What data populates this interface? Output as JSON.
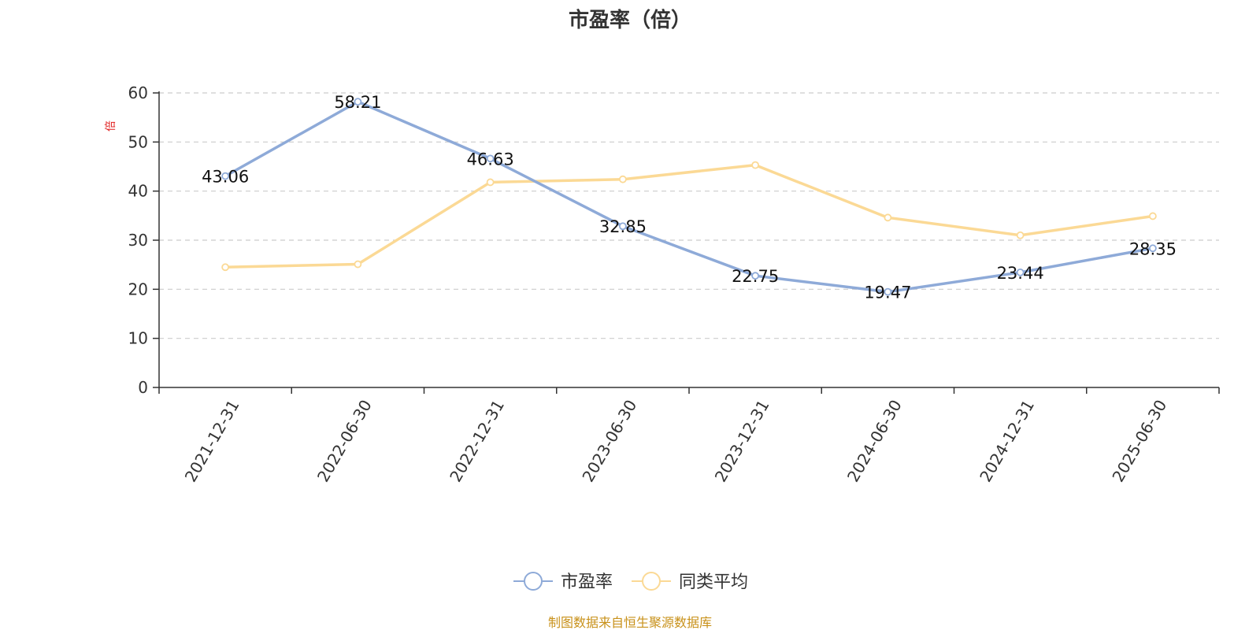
{
  "chart_data": {
    "type": "line",
    "title": "市盈率（倍）",
    "ylabel": "倍",
    "ylim": [
      0,
      60
    ],
    "yticks": [
      0,
      10,
      20,
      30,
      40,
      50,
      60
    ],
    "categories": [
      "2021-12-31",
      "2022-06-30",
      "2022-12-31",
      "2023-06-30",
      "2023-12-31",
      "2024-06-30",
      "2024-12-31",
      "2025-06-30"
    ],
    "series": [
      {
        "name": "市盈率",
        "color": "#8eaad8",
        "values": [
          43.06,
          58.21,
          46.63,
          32.85,
          22.75,
          19.47,
          23.44,
          28.35
        ],
        "show_labels": true
      },
      {
        "name": "同类平均",
        "color": "#fbd995",
        "values": [
          24.5,
          25.1,
          41.8,
          42.4,
          45.3,
          34.6,
          31.0,
          34.9
        ],
        "show_labels": false
      }
    ],
    "grid": true,
    "legend_position": "bottom-center",
    "source": "制图数据来自恒生聚源数据库",
    "colors": {
      "source_text": "#c8911a",
      "unit_text": "#e02020",
      "grid": "#cccccc",
      "axis": "#333333"
    }
  }
}
